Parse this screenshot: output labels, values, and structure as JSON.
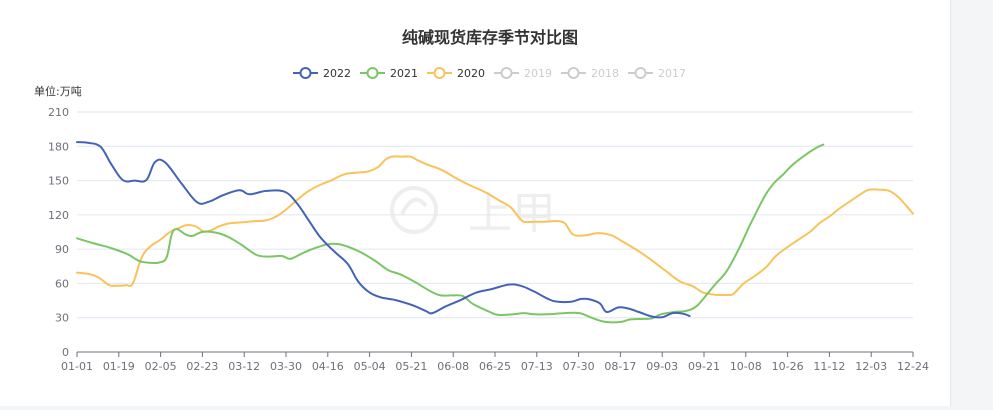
{
  "chart_data": {
    "type": "line",
    "title": "纯碱现货库存季节对比图",
    "ylabel": "单位:万吨",
    "ylim": [
      0,
      210
    ],
    "yticks": [
      0,
      30,
      60,
      90,
      120,
      150,
      180,
      210
    ],
    "x_categories": [
      "01-01",
      "01-19",
      "02-05",
      "02-23",
      "03-12",
      "03-30",
      "04-16",
      "05-04",
      "05-21",
      "06-08",
      "06-25",
      "07-13",
      "07-30",
      "08-17",
      "09-03",
      "09-21",
      "10-08",
      "10-26",
      "11-12",
      "12-03",
      "12-24"
    ],
    "legend_position": "top-center",
    "grid": true,
    "watermark_text": "上甲",
    "series": [
      {
        "name": "2022",
        "color": "#4463b5",
        "active": true,
        "values": [
          [
            0,
            183.7
          ],
          [
            0.35,
            183
          ],
          [
            0.7,
            179.5
          ],
          [
            1,
            165
          ],
          [
            1.35,
            150.5
          ],
          [
            1.7,
            150
          ],
          [
            2.05,
            150.5
          ],
          [
            2.3,
            166
          ],
          [
            2.6,
            166
          ],
          [
            3.1,
            147
          ],
          [
            3.55,
            131
          ],
          [
            3.9,
            131.5
          ],
          [
            4.3,
            137
          ],
          [
            4.8,
            141.5
          ],
          [
            5.1,
            138
          ],
          [
            5.6,
            141
          ],
          [
            6.15,
            140
          ],
          [
            6.5,
            130
          ],
          [
            6.85,
            115
          ],
          [
            7.2,
            100
          ],
          [
            7.6,
            88
          ],
          [
            8,
            77
          ],
          [
            8.3,
            62
          ],
          [
            8.6,
            53
          ],
          [
            8.95,
            48
          ],
          [
            9.4,
            45.5
          ],
          [
            9.9,
            41
          ],
          [
            10.3,
            36
          ],
          [
            10.5,
            34
          ],
          [
            10.9,
            40
          ],
          [
            11.3,
            45
          ],
          [
            11.8,
            52
          ],
          [
            12.25,
            55
          ],
          [
            12.75,
            59
          ],
          [
            13.1,
            58
          ],
          [
            13.5,
            53
          ],
          [
            13.95,
            46
          ],
          [
            14.2,
            44
          ],
          [
            14.6,
            44
          ],
          [
            14.9,
            46.5
          ],
          [
            15.15,
            46
          ],
          [
            15.45,
            42.5
          ],
          [
            15.65,
            35
          ],
          [
            16,
            39
          ],
          [
            16.3,
            38
          ],
          [
            16.6,
            35
          ],
          [
            17,
            31
          ],
          [
            17.3,
            30.5
          ],
          [
            17.6,
            34
          ],
          [
            17.9,
            33.5
          ],
          [
            18.1,
            31.5
          ]
        ]
      },
      {
        "name": "2021",
        "color": "#7cc567",
        "active": true,
        "values": [
          [
            0,
            99.5
          ],
          [
            0.5,
            95
          ],
          [
            1,
            91
          ],
          [
            1.5,
            85.5
          ],
          [
            1.85,
            79.5
          ],
          [
            2.2,
            78
          ],
          [
            2.45,
            78.5
          ],
          [
            2.65,
            83
          ],
          [
            2.8,
            103
          ],
          [
            2.95,
            107.5
          ],
          [
            3.2,
            103
          ],
          [
            3.4,
            101.5
          ],
          [
            3.7,
            105
          ],
          [
            4.1,
            104.5
          ],
          [
            4.45,
            101
          ],
          [
            4.85,
            94
          ],
          [
            5.3,
            85
          ],
          [
            5.65,
            83.5
          ],
          [
            6.05,
            84
          ],
          [
            6.3,
            81.5
          ],
          [
            6.6,
            85.5
          ],
          [
            6.9,
            89.5
          ],
          [
            7.25,
            93
          ],
          [
            7.45,
            94.5
          ],
          [
            7.8,
            94
          ],
          [
            8.3,
            88.5
          ],
          [
            8.8,
            80
          ],
          [
            9.2,
            71.5
          ],
          [
            9.55,
            68
          ],
          [
            10,
            61
          ],
          [
            10.45,
            53
          ],
          [
            10.75,
            49.5
          ],
          [
            11.1,
            49.5
          ],
          [
            11.4,
            49
          ],
          [
            11.7,
            42
          ],
          [
            12.2,
            35
          ],
          [
            12.45,
            32.5
          ],
          [
            12.9,
            33
          ],
          [
            13.2,
            34
          ],
          [
            13.5,
            33
          ],
          [
            13.9,
            33
          ],
          [
            14.4,
            34
          ],
          [
            14.85,
            34
          ],
          [
            15.2,
            30
          ],
          [
            15.5,
            27
          ],
          [
            15.75,
            26
          ],
          [
            16.1,
            26.5
          ],
          [
            16.35,
            28.5
          ],
          [
            16.75,
            29
          ],
          [
            17,
            29.5
          ],
          [
            17.25,
            33
          ],
          [
            17.65,
            35
          ],
          [
            18,
            36
          ],
          [
            18.3,
            40
          ],
          [
            18.6,
            50
          ],
          [
            18.85,
            59
          ],
          [
            19.2,
            71
          ],
          [
            19.55,
            90
          ],
          [
            19.85,
            109
          ],
          [
            20.1,
            124
          ],
          [
            20.35,
            138
          ],
          [
            20.6,
            148
          ],
          [
            20.85,
            155
          ],
          [
            21.15,
            164
          ],
          [
            21.5,
            172
          ],
          [
            21.83,
            178.5
          ],
          [
            22.05,
            181.5
          ]
        ]
      },
      {
        "name": "2020",
        "color": "#f7c35a",
        "active": true,
        "values": [
          [
            0,
            69.5
          ],
          [
            0.4,
            68
          ],
          [
            0.65,
            65
          ],
          [
            0.95,
            58.5
          ],
          [
            1.2,
            58
          ],
          [
            1.45,
            58.5
          ],
          [
            1.65,
            60
          ],
          [
            1.9,
            82
          ],
          [
            2.15,
            92
          ],
          [
            2.45,
            98
          ],
          [
            2.75,
            105
          ],
          [
            3.05,
            109
          ],
          [
            3.25,
            111
          ],
          [
            3.5,
            110
          ],
          [
            3.75,
            105.5
          ],
          [
            4,
            107
          ],
          [
            4.2,
            110
          ],
          [
            4.5,
            112.5
          ],
          [
            4.9,
            113.5
          ],
          [
            5.25,
            114.5
          ],
          [
            5.55,
            115
          ],
          [
            5.85,
            118
          ],
          [
            6.15,
            124
          ],
          [
            6.5,
            133
          ],
          [
            6.85,
            141
          ],
          [
            7.2,
            146.5
          ],
          [
            7.5,
            150
          ],
          [
            7.9,
            155.5
          ],
          [
            8.3,
            157
          ],
          [
            8.6,
            158
          ],
          [
            8.9,
            162
          ],
          [
            9.1,
            168
          ],
          [
            9.3,
            171
          ],
          [
            9.6,
            171
          ],
          [
            9.85,
            171
          ],
          [
            10.05,
            168
          ],
          [
            10.35,
            164
          ],
          [
            10.8,
            159
          ],
          [
            11.2,
            152
          ],
          [
            11.6,
            146
          ],
          [
            12.05,
            140
          ],
          [
            12.45,
            133
          ],
          [
            12.8,
            127
          ],
          [
            13,
            120
          ],
          [
            13.2,
            114
          ],
          [
            13.5,
            114
          ],
          [
            13.85,
            114
          ],
          [
            14.1,
            114.5
          ],
          [
            14.4,
            113
          ],
          [
            14.65,
            103
          ],
          [
            15,
            102
          ],
          [
            15.4,
            104
          ],
          [
            15.8,
            102
          ],
          [
            16.1,
            97
          ],
          [
            16.5,
            90
          ],
          [
            16.9,
            82
          ],
          [
            17.35,
            72
          ],
          [
            17.8,
            62
          ],
          [
            18.2,
            57.5
          ],
          [
            18.5,
            52
          ],
          [
            18.9,
            50
          ],
          [
            19.25,
            50
          ],
          [
            19.4,
            51
          ],
          [
            19.7,
            60
          ],
          [
            20,
            66
          ],
          [
            20.35,
            74
          ],
          [
            20.65,
            84
          ],
          [
            21,
            92
          ],
          [
            21.3,
            98
          ],
          [
            21.65,
            105
          ],
          [
            21.95,
            113
          ],
          [
            22.25,
            119
          ],
          [
            22.55,
            126
          ],
          [
            22.85,
            132
          ],
          [
            23.15,
            138
          ],
          [
            23.4,
            142
          ],
          [
            23.7,
            142
          ],
          [
            24,
            141
          ],
          [
            24.25,
            136
          ],
          [
            24.5,
            128
          ],
          [
            24.7,
            121
          ]
        ]
      },
      {
        "name": "2019",
        "color": "#cccccc",
        "active": false,
        "values": []
      },
      {
        "name": "2018",
        "color": "#cccccc",
        "active": false,
        "values": []
      },
      {
        "name": "2017",
        "color": "#cccccc",
        "active": false,
        "values": []
      }
    ]
  }
}
